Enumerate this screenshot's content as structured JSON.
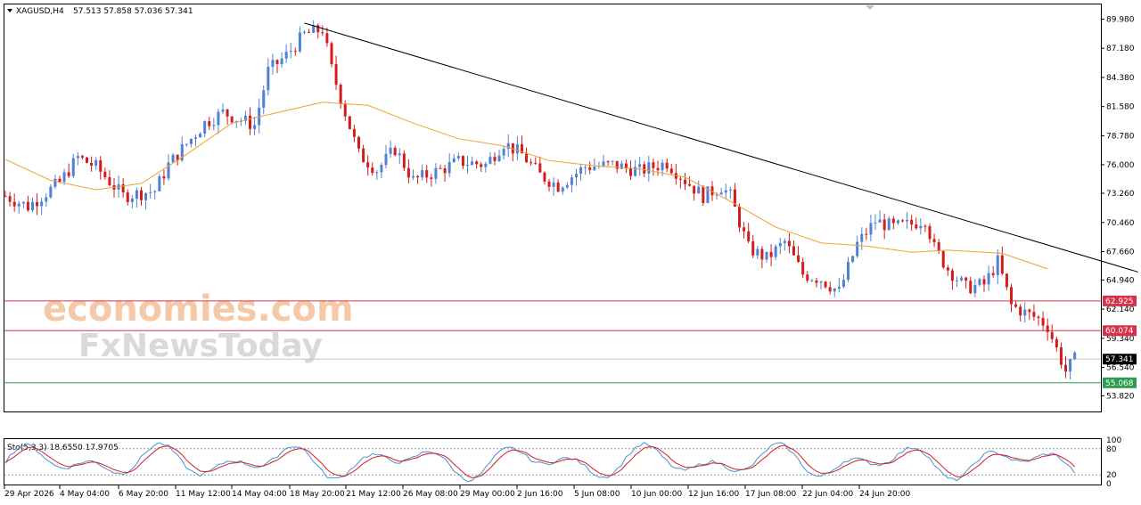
{
  "header": {
    "symbol": "XAGUSD,H4",
    "ohlc": "57.513 57.858 57.036 57.341"
  },
  "watermark": {
    "line1": "economies.com",
    "line2": "FxNewsToday"
  },
  "indicator": {
    "label": "Sto(5,3,3) 18.6550 17.9705",
    "levels": [
      "100",
      "80",
      "20",
      "0"
    ]
  },
  "colors": {
    "bull": "#4f81d9",
    "bear": "#d41c1c",
    "ma": "#f0a030",
    "trendline": "#000000",
    "resistance": "#d6334a",
    "support": "#2e9b4e",
    "stoch_main": "#4a90d9",
    "stoch_signal": "#d41c1c",
    "current_price_bg": "#000000"
  },
  "chart_data": {
    "type": "candlestick",
    "symbol": "XAGUSD",
    "timeframe": "H4",
    "price_axis_ticks": [
      "89.980",
      "87.180",
      "84.380",
      "81.580",
      "78.780",
      "76.000",
      "73.260",
      "70.460",
      "67.660",
      "64.940",
      "62.140",
      "59.340",
      "56.540",
      "53.820"
    ],
    "ylim": [
      52.4,
      91.3
    ],
    "time_axis_labels": [
      "29 Apr 2026",
      "4 May 04:00",
      "6 May 20:00",
      "11 May 12:00",
      "14 May 04:00",
      "18 May 20:00",
      "21 May 12:00",
      "26 May 08:00",
      "29 May 00:00",
      "2 Jun 16:00",
      "5 Jun 08:00",
      "10 Jun 00:00",
      "12 Jun 16:00",
      "17 Jun 08:00",
      "22 Jun 04:00",
      "24 Jun 20:00"
    ],
    "close_path": [
      [
        0,
        73.0
      ],
      [
        5,
        72.0
      ],
      [
        12,
        74.3
      ],
      [
        16,
        76.7
      ],
      [
        20,
        75.8
      ],
      [
        26,
        73.0
      ],
      [
        33,
        73.5
      ],
      [
        36,
        76.0
      ],
      [
        40,
        78.0
      ],
      [
        44,
        80.0
      ],
      [
        48,
        81.0
      ],
      [
        52,
        80.3
      ],
      [
        55,
        79.8
      ],
      [
        58,
        85.0
      ],
      [
        62,
        86.5
      ],
      [
        66,
        88.5
      ],
      [
        70,
        89.0
      ],
      [
        72,
        85.2
      ],
      [
        75,
        81.0
      ],
      [
        78,
        77.0
      ],
      [
        82,
        75.5
      ],
      [
        86,
        77.5
      ],
      [
        90,
        74.5
      ],
      [
        96,
        75.5
      ],
      [
        100,
        76.3
      ],
      [
        106,
        76.0
      ],
      [
        110,
        78.1
      ],
      [
        114,
        77.0
      ],
      [
        118,
        75.0
      ],
      [
        122,
        74.0
      ],
      [
        128,
        75.8
      ],
      [
        134,
        76.0
      ],
      [
        140,
        75.4
      ],
      [
        146,
        76.2
      ],
      [
        150,
        74.5
      ],
      [
        154,
        73.0
      ],
      [
        158,
        73.9
      ],
      [
        160,
        73.0
      ],
      [
        164,
        68.0
      ],
      [
        168,
        67.0
      ],
      [
        172,
        68.6
      ],
      [
        176,
        65.5
      ],
      [
        180,
        65.0
      ],
      [
        184,
        63.8
      ],
      [
        188,
        68.4
      ],
      [
        192,
        70.6
      ],
      [
        196,
        70.0
      ],
      [
        200,
        70.3
      ],
      [
        203,
        70.8
      ],
      [
        205,
        68.0
      ],
      [
        208,
        66.0
      ],
      [
        212,
        64.2
      ],
      [
        216,
        64.5
      ],
      [
        219,
        66.7
      ],
      [
        222,
        62.5
      ],
      [
        225,
        61.8
      ],
      [
        228,
        61.2
      ],
      [
        230,
        60.5
      ],
      [
        232,
        58.3
      ],
      [
        234,
        56.2
      ],
      [
        236,
        57.3
      ]
    ],
    "high": 89.9,
    "low": 55.5,
    "last": 57.341,
    "moving_average": [
      [
        0,
        76.5
      ],
      [
        10,
        74.5
      ],
      [
        20,
        73.6
      ],
      [
        30,
        74.2
      ],
      [
        40,
        77.0
      ],
      [
        50,
        80.0
      ],
      [
        60,
        81.0
      ],
      [
        70,
        82.0
      ],
      [
        80,
        81.7
      ],
      [
        90,
        80.0
      ],
      [
        100,
        78.5
      ],
      [
        110,
        77.8
      ],
      [
        120,
        76.4
      ],
      [
        130,
        75.9
      ],
      [
        140,
        75.6
      ],
      [
        150,
        74.8
      ],
      [
        160,
        72.5
      ],
      [
        170,
        70.0
      ],
      [
        180,
        68.5
      ],
      [
        190,
        68.2
      ],
      [
        200,
        67.6
      ],
      [
        208,
        67.8
      ],
      [
        220,
        67.5
      ],
      [
        230,
        66.0
      ]
    ],
    "trendline": {
      "start": [
        66,
        89.6
      ],
      "end": [
        250,
        65.7
      ]
    },
    "horizontal_levels": [
      {
        "value": 62.925,
        "label": "62.925",
        "color": "#d6334a"
      },
      {
        "value": 60.074,
        "label": "60.074",
        "color": "#d6334a"
      },
      {
        "value": 55.068,
        "label": "55.068",
        "color": "#2e9b4e"
      }
    ],
    "current_price_label": "57.341",
    "stochastic": {
      "k": 18.655,
      "d": 17.9705,
      "levels": [
        100,
        80,
        20,
        0
      ]
    }
  }
}
